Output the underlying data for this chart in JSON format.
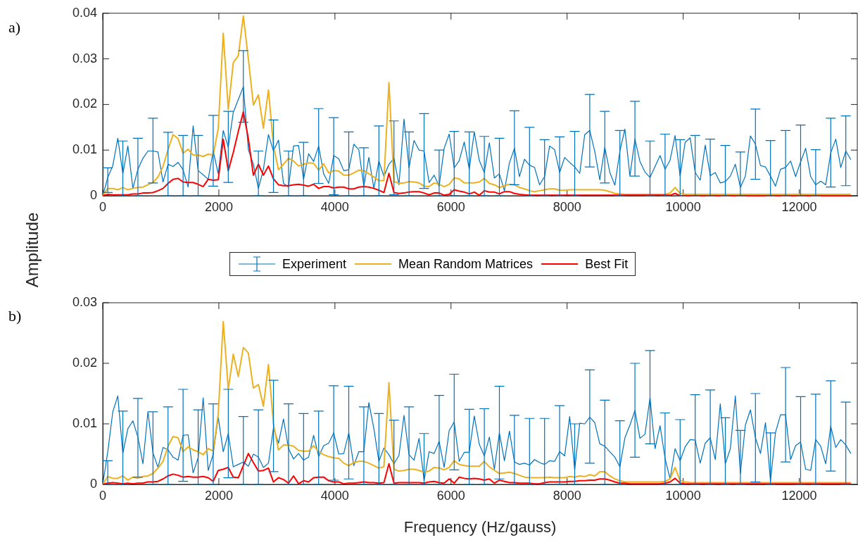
{
  "chart_data": [
    {
      "type": "line",
      "title": "a)",
      "ylabel": "Amplitude",
      "legend": "bottom",
      "x": [
        0,
        86.5,
        173,
        259.5,
        346,
        432.5,
        519,
        605.5,
        692,
        778.5,
        865,
        951.5,
        1038,
        1124.5,
        1211,
        1297.5,
        1384,
        1470.5,
        1557,
        1643.5,
        1730,
        1816.5,
        1903,
        1989.5,
        2076,
        2162.5,
        2249,
        2335.5,
        2422,
        2508.5,
        2595,
        2681.5,
        2768,
        2854.5,
        2941,
        3027.5,
        3114,
        3200.5,
        3287,
        3373.5,
        3460,
        3546.5,
        3633,
        3719.5,
        3806,
        3892.5,
        3979,
        4065.5,
        4152,
        4238.5,
        4325,
        4411.5,
        4498,
        4584.5,
        4671,
        4757.5,
        4844,
        4930.5,
        5017,
        5103.5,
        5190,
        5276.5,
        5363,
        5449.5,
        5536,
        5622.5,
        5709,
        5795.5,
        5882,
        5968.5,
        6055,
        6141.5,
        6228,
        6314.5,
        6401,
        6487.5,
        6574,
        6660.5,
        6747,
        6833.5,
        6920,
        7006.5,
        7093,
        7179.5,
        7266,
        7352.5,
        7439,
        7525.5,
        7612,
        7698.5,
        7785,
        7871.5,
        7958,
        8044.5,
        8131,
        8217.5,
        8304,
        8390.5,
        8477,
        8563.5,
        8650,
        8736.5,
        8823,
        8909.5,
        8996,
        9082.5,
        9169,
        9255.5,
        9342,
        9428.5,
        9515,
        9601.5,
        9688,
        9774.5,
        9861,
        9947.5,
        10034,
        10120.5,
        10207,
        10293.5,
        10380,
        10466.5,
        10553,
        10639.5,
        10726,
        10812.5,
        10899,
        10985.5,
        11072,
        11158.5,
        11245,
        11331.5,
        11418,
        11504.5,
        11591,
        11677.5,
        11764,
        11850.5,
        11937,
        12023.5,
        12110,
        12196.5,
        12283,
        12369.5,
        12456,
        12542.5,
        12629,
        12715.5,
        12802,
        12888.5
      ],
      "xlim": [
        0,
        13000
      ],
      "xticks": [
        0,
        2000,
        4000,
        6000,
        8000,
        10000,
        12000
      ],
      "ylim": [
        0,
        0.04
      ],
      "yticks": [
        0,
        0.01,
        0.02,
        0.03,
        0.04
      ],
      "series": [
        {
          "name": "Experiment",
          "color": "#0072bd",
          "values": [
            0,
            0.004,
            0.0066,
            0.0126,
            0.0048,
            0.0109,
            0.0016,
            0.0058,
            0.0082,
            0.0098,
            0.0098,
            0.0096,
            0.003,
            0.0069,
            0.0064,
            0.0073,
            0.0057,
            0.0019,
            0.0153,
            0.0055,
            0.0046,
            0.0036,
            0.0098,
            0.0048,
            0.0143,
            0.0106,
            0.0183,
            0.0211,
            0.0239,
            0.0101,
            0.0069,
            0.0016,
            0.0058,
            0.0134,
            0.0098,
            0.0122,
            0.0027,
            0.0019,
            0.0109,
            0.011,
            0.0036,
            0.0092,
            0.0075,
            0.0109,
            0.0048,
            0.0027,
            0.0088,
            0.0081,
            0.0055,
            0.0057,
            0.0113,
            0.0101,
            0.0021,
            0.0084,
            0.0016,
            0.0076,
            0.0042,
            0.0069,
            0.0082,
            0.0024,
            0.0168,
            0.0061,
            0.0121,
            0.01,
            0.0098,
            0.0029,
            0.0045,
            0.0021,
            0.0104,
            0.0135,
            0.0061,
            0.0077,
            0.0118,
            0.0058,
            0.014,
            0.0077,
            0.0051,
            0.0116,
            0.0039,
            0.0048,
            0.0011,
            0.0072,
            0.0104,
            0.0042,
            0.008,
            0.0067,
            0.0062,
            0.0024,
            0.0042,
            0.0109,
            0.0101,
            0.0051,
            0.0084,
            0.0073,
            0.0063,
            0.0049,
            0.0134,
            0.0143,
            0.0097,
            0.0035,
            0.0106,
            0.0051,
            0.0023,
            0.0098,
            0.0146,
            0.0043,
            0.0124,
            0.0075,
            0.0052,
            0.004,
            0.0064,
            0.0088,
            0.0058,
            0.0078,
            0.0132,
            0.0043,
            0.0117,
            0.0127,
            0.0051,
            0.0034,
            0.0111,
            0.0044,
            0.0051,
            0.0028,
            0.0031,
            0.0043,
            0.0069,
            0.0018,
            0.0043,
            0.0131,
            0.0113,
            0.0066,
            0.0063,
            0.0043,
            0.0021,
            0.0058,
            0.0062,
            0.0076,
            0.0042,
            0.0074,
            0.0104,
            0.0042,
            0.0024,
            0.0032,
            0.0024,
            0.0094,
            0.0124,
            0.0062,
            0.0098,
            0.0079
          ],
          "errors": [
            null,
            [
              0.0007,
              0.0061
            ],
            null,
            null,
            [
              0,
              0.012
            ],
            null,
            null,
            [
              0,
              0.0126
            ],
            null,
            null,
            [
              0.0028,
              0.017
            ],
            null,
            null,
            [
              0,
              0.0139
            ],
            null,
            null,
            [
              0,
              0.0132
            ],
            null,
            null,
            [
              0,
              0.0132
            ],
            null,
            null,
            [
              0.0021,
              0.0176
            ],
            null,
            null,
            [
              0.0029,
              0.0185
            ],
            null,
            null,
            [
              0.0161,
              0.0318
            ],
            null,
            null,
            [
              0,
              0.0098
            ],
            null,
            null,
            [
              0.0007,
              0.0166
            ],
            null,
            null,
            [
              0,
              0.0098
            ],
            null,
            null,
            [
              0,
              0.0117
            ],
            null,
            null,
            [
              0.0027,
              0.0191
            ],
            null,
            null,
            [
              0.0002,
              0.0171
            ],
            null,
            null,
            [
              0,
              0.014
            ],
            null,
            null,
            [
              0,
              0.0105
            ],
            null,
            null,
            [
              0,
              0.0153
            ],
            null,
            null,
            [
              0.0002,
              0.0164
            ],
            null,
            null,
            [
              0,
              0.014
            ],
            null,
            null,
            [
              0.0016,
              0.018
            ],
            null,
            null,
            [
              0,
              0.01
            ],
            null,
            null,
            [
              0,
              0.0141
            ],
            null,
            null,
            [
              0,
              0.014
            ],
            null,
            null,
            [
              0,
              0.013
            ],
            null,
            null,
            [
              0,
              0.0126
            ],
            null,
            null,
            [
              0.0024,
              0.0186
            ],
            null,
            null,
            [
              0,
              0.015
            ],
            null,
            null,
            [
              0,
              0.0123
            ],
            null,
            null,
            [
              0,
              0.0129
            ],
            null,
            null,
            [
              0,
              0.0141
            ],
            null,
            null,
            [
              0.0063,
              0.0222
            ],
            null,
            null,
            [
              0.0028,
              0.0185
            ],
            null,
            null,
            [
              0,
              0.0143
            ],
            null,
            null,
            [
              0.0043,
              0.0207
            ],
            null,
            null,
            [
              0,
              0.012
            ],
            null,
            null,
            [
              0,
              0.0135
            ],
            null,
            null,
            [
              0,
              0.0123
            ],
            null,
            null,
            [
              0,
              0.0132
            ],
            null,
            null,
            [
              0,
              0.0124
            ],
            null,
            null,
            [
              0,
              0.011
            ],
            null,
            null,
            [
              0,
              0.0096
            ],
            null,
            null,
            [
              0.0036,
              0.019
            ],
            null,
            null,
            [
              0,
              0.0121
            ],
            null,
            null,
            [
              0,
              0.0143
            ],
            null,
            null,
            [
              0,
              0.0155
            ],
            null,
            null,
            [
              0,
              0.0101
            ],
            null,
            null,
            [
              0.0019,
              0.017
            ],
            null,
            null,
            [
              0.0022,
              0.0175
            ],
            null
          ]
        },
        {
          "name": "Mean Random Matrices",
          "color": "#edb120",
          "values": [
            0,
            0.0016,
            0.0016,
            0.0013,
            0.0018,
            0.0013,
            0.0016,
            0.0018,
            0.0019,
            0.0024,
            0.0029,
            0.0041,
            0.0064,
            0.0101,
            0.0134,
            0.0125,
            0.0093,
            0.0102,
            0.0089,
            0.0089,
            0.0086,
            0.0091,
            0.0089,
            0.0147,
            0.0356,
            0.0189,
            0.0292,
            0.0307,
            0.0394,
            0.03,
            0.0199,
            0.0221,
            0.0148,
            0.0232,
            0.0109,
            0.0057,
            0.0069,
            0.0082,
            0.0076,
            0.0065,
            0.0069,
            0.0072,
            0.0071,
            0.0056,
            0.007,
            0.005,
            0.0055,
            0.0054,
            0.0045,
            0.0045,
            0.005,
            0.0056,
            0.0055,
            0.0048,
            0.0041,
            0.0033,
            0.0033,
            0.0248,
            0.0031,
            0.0027,
            0.0028,
            0.0031,
            0.003,
            0.0028,
            0.0021,
            0.002,
            0.0028,
            0.0025,
            0.002,
            0.0025,
            0.0039,
            0.0037,
            0.0028,
            0.0028,
            0.0028,
            0.003,
            0.0038,
            0.0027,
            0.0024,
            0.0018,
            0.0022,
            0.0025,
            0.0024,
            0.0018,
            0.0015,
            0.0011,
            0.0009,
            0.0011,
            0.0013,
            0.0015,
            0.0015,
            0.0012,
            0.0012,
            0.0013,
            0.0013,
            0.0013,
            0.0013,
            0.0013,
            0.0013,
            0.0013,
            0.0012,
            0.0009,
            0.0005,
            0.0004,
            0.0003,
            0.0003,
            0.0003,
            0.0003,
            0.0003,
            0.0003,
            0.0003,
            0.0003,
            0.0003,
            0.0006,
            0.0018,
            0.0005,
            0.0003,
            0.0003,
            0.0003,
            0.0003,
            0.0003,
            0.0003,
            0.0003,
            0.0003,
            0.0003,
            0.0003,
            0.0003,
            0.0003,
            0.0003,
            0.0003,
            0.0003,
            0.0003,
            0.0003,
            0.0003,
            0.0003,
            0.0003,
            0.0003,
            0.0003,
            0.0003,
            0.0003,
            0.0003,
            0.0003,
            0.0003,
            0.0003,
            0.0003,
            0.0003,
            0.0003,
            0.0003,
            0.0003,
            0.0003
          ]
        },
        {
          "name": "Best Fit",
          "color": "#ff0000",
          "values": [
            0,
            0.0003,
            0.0002,
            0.0002,
            0.0002,
            0.0002,
            0.0004,
            0.0004,
            0.0006,
            0.0006,
            0.0007,
            0.0011,
            0.0016,
            0.0027,
            0.0036,
            0.0038,
            0.003,
            0.0029,
            0.0029,
            0.0025,
            0.002,
            0.0036,
            0.0034,
            0.0035,
            0.0124,
            0.0055,
            0.0095,
            0.0141,
            0.0184,
            0.0125,
            0.0045,
            0.0069,
            0.0045,
            0.0065,
            0.0037,
            0.0024,
            0.0022,
            0.0022,
            0.0024,
            0.0025,
            0.0023,
            0.0021,
            0.0025,
            0.0016,
            0.002,
            0.002,
            0.0017,
            0.0019,
            0.0019,
            0.0015,
            0.0015,
            0.0019,
            0.002,
            0.0019,
            0.0016,
            0.0012,
            0.0007,
            0.0049,
            0.0007,
            0.0005,
            0.0006,
            0.0008,
            0.0009,
            0.0009,
            0.0006,
            0.0002,
            0.0006,
            0.0006,
            0.0001,
            0.0003,
            0.0013,
            0.001,
            0.0008,
            0.0004,
            0.0008,
            0.0001,
            0.0011,
            0.0008,
            0.0008,
            0.0004,
            0.0009,
            0.0009,
            0.0005,
            0.0003,
            0.0002,
            0.0001,
            0.0001,
            0.0001,
            0.0001,
            0.0001,
            0.0001,
            0.0001,
            0.0001,
            0.0001,
            0.0001,
            0.0001,
            0.0001,
            0.0001,
            0.0001,
            0.0001,
            0.0001,
            0.0001,
            0.0001,
            0.0001,
            0.0001,
            0.0001,
            0.0001,
            0.0001,
            0.0001,
            0.0001,
            0.0001,
            0.0001,
            0.0001,
            0.0001,
            0.0005,
            0,
            0,
            0,
            0,
            0,
            0,
            0,
            0,
            0,
            0,
            0,
            0,
            0,
            0,
            0,
            0,
            0,
            0,
            0,
            0,
            0,
            0,
            0,
            0,
            0,
            0,
            0,
            0,
            0,
            0,
            0,
            0,
            0,
            0,
            0
          ]
        }
      ]
    },
    {
      "type": "line",
      "title": "b)",
      "xlabel": "Frequency (Hz/gauss)",
      "x": [
        0,
        86.5,
        173,
        259.5,
        346,
        432.5,
        519,
        605.5,
        692,
        778.5,
        865,
        951.5,
        1038,
        1124.5,
        1211,
        1297.5,
        1384,
        1470.5,
        1557,
        1643.5,
        1730,
        1816.5,
        1903,
        1989.5,
        2076,
        2162.5,
        2249,
        2335.5,
        2422,
        2508.5,
        2595,
        2681.5,
        2768,
        2854.5,
        2941,
        3027.5,
        3114,
        3200.5,
        3287,
        3373.5,
        3460,
        3546.5,
        3633,
        3719.5,
        3806,
        3892.5,
        3979,
        4065.5,
        4152,
        4238.5,
        4325,
        4411.5,
        4498,
        4584.5,
        4671,
        4757.5,
        4844,
        4930.5,
        5017,
        5103.5,
        5190,
        5276.5,
        5363,
        5449.5,
        5536,
        5622.5,
        5709,
        5795.5,
        5882,
        5968.5,
        6055,
        6141.5,
        6228,
        6314.5,
        6401,
        6487.5,
        6574,
        6660.5,
        6747,
        6833.5,
        6920,
        7006.5,
        7093,
        7179.5,
        7266,
        7352.5,
        7439,
        7525.5,
        7612,
        7698.5,
        7785,
        7871.5,
        7958,
        8044.5,
        8131,
        8217.5,
        8304,
        8390.5,
        8477,
        8563.5,
        8650,
        8736.5,
        8823,
        8909.5,
        8996,
        9082.5,
        9169,
        9255.5,
        9342,
        9428.5,
        9515,
        9601.5,
        9688,
        9774.5,
        9861,
        9947.5,
        10034,
        10120.5,
        10207,
        10293.5,
        10380,
        10466.5,
        10553,
        10639.5,
        10726,
        10812.5,
        10899,
        10985.5,
        11072,
        11158.5,
        11245,
        11331.5,
        11418,
        11504.5,
        11591,
        11677.5,
        11764,
        11850.5,
        11937,
        12023.5,
        12110,
        12196.5,
        12283,
        12369.5,
        12456,
        12542.5,
        12629,
        12715.5,
        12802,
        12888.5
      ],
      "xlim": [
        0,
        13000
      ],
      "xticks": [
        0,
        2000,
        4000,
        6000,
        8000,
        10000,
        12000
      ],
      "ylim": [
        0,
        0.03
      ],
      "yticks": [
        0,
        0.01,
        0.02,
        0.03
      ],
      "series": [
        {
          "color": "#0072bd",
          "values": [
            0,
            0.0054,
            0.012,
            0.0146,
            0.0051,
            0.0092,
            0.0105,
            0.0078,
            0.0034,
            0.012,
            0.0052,
            0.0028,
            0.0061,
            0.0057,
            0.0045,
            0.004,
            0.0081,
            0.0082,
            0.0019,
            0.0044,
            0.0143,
            0.0023,
            0.005,
            0.0111,
            0.0054,
            0.0084,
            0.0029,
            0.0033,
            0.0037,
            0.003,
            0.005,
            0.0045,
            0.0028,
            0.0035,
            0.0093,
            0.0068,
            0.0108,
            0.0059,
            0.0042,
            0.0051,
            0.004,
            0.0045,
            0.0081,
            0.0046,
            0.0064,
            0.0068,
            0.0085,
            0.005,
            0.0051,
            0.0085,
            0.0031,
            0.0054,
            0.0054,
            0.0135,
            0.0092,
            0.0038,
            0.006,
            0.0049,
            0.0034,
            0.0048,
            0.0114,
            0.0049,
            0.004,
            0.0076,
            0.0006,
            0.0054,
            0.0051,
            0.0071,
            0.0028,
            0.0089,
            0.0103,
            0.0038,
            0.0053,
            0.0053,
            0.0113,
            0.0066,
            0.0047,
            0.0078,
            0.0025,
            0.0085,
            0.0039,
            0.0088,
            0.0037,
            0.0033,
            0.0035,
            0.0032,
            0.0041,
            0.0036,
            0.0033,
            0.0039,
            0.0038,
            0.0054,
            0.0047,
            0.0112,
            0.0024,
            0.0101,
            0.01,
            0.0111,
            0.0102,
            0.0067,
            0.0063,
            0.0054,
            0.0045,
            0.0029,
            0.0077,
            0.0098,
            0.0122,
            0.0076,
            0.0083,
            0.0143,
            0.0059,
            0.0097,
            0.0043,
            0.0009,
            0.0059,
            0.0039,
            0.0062,
            0.0074,
            0.0073,
            0.0035,
            0.0068,
            0.0077,
            0.0041,
            0.0133,
            0.0034,
            0.0059,
            0.0146,
            0.0018,
            0.0098,
            0.0123,
            0.0077,
            0.0051,
            0.0102,
            0.0005,
            0.0086,
            0.0115,
            0.0115,
            0.0041,
            0.0064,
            0.007,
            0.0025,
            0.0023,
            0.0074,
            0.0063,
            0.0034,
            0.0096,
            0.0061,
            0.0074,
            0.0065,
            0.0051
          ],
          "errors": [
            null,
            [
              0,
              0.0039
            ],
            null,
            null,
            [
              0,
              0.0121
            ],
            null,
            null,
            [
              0.0012,
              0.0142
            ],
            null,
            null,
            [
              0,
              0.012
            ],
            null,
            null,
            [
              0,
              0.0128
            ],
            null,
            null,
            [
              0.0005,
              0.0157
            ],
            null,
            null,
            [
              0,
              0.0123
            ],
            null,
            null,
            [
              0,
              0.0133
            ],
            null,
            null,
            [
              0.0011,
              0.0157
            ],
            null,
            null,
            [
              0,
              0.0112
            ],
            null,
            null,
            [
              0,
              0.0123
            ],
            null,
            null,
            [
              0.0021,
              0.0172
            ],
            null,
            null,
            [
              0,
              0.0133
            ],
            null,
            null,
            [
              0,
              0.0117
            ],
            null,
            null,
            [
              0,
              0.0121
            ],
            null,
            null,
            [
              0.0007,
              0.0163
            ],
            null,
            null,
            [
              0.0009,
              0.0162
            ],
            null,
            null,
            [
              0,
              0.0128
            ],
            null,
            null,
            [
              0,
              0.0117
            ],
            null,
            null,
            [
              0,
              0.0106
            ],
            null,
            null,
            [
              0,
              0.0128
            ],
            null,
            null,
            [
              0,
              0.0084
            ],
            null,
            null,
            [
              0,
              0.0147
            ],
            null,
            null,
            [
              0.0024,
              0.0182
            ],
            null,
            null,
            [
              0,
              0.0124
            ],
            null,
            null,
            [
              0,
              0.0125
            ],
            null,
            null,
            [
              0.0009,
              0.0162
            ],
            null,
            null,
            [
              0,
              0.0114
            ],
            null,
            null,
            [
              0,
              0.0109
            ],
            null,
            null,
            [
              0,
              0.0109
            ],
            null,
            null,
            [
              0,
              0.013
            ],
            null,
            null,
            [
              0,
              0.01
            ],
            null,
            null,
            [
              0.0035,
              0.0189
            ],
            null,
            null,
            [
              0,
              0.0139
            ],
            null,
            null,
            [
              0,
              0.0105
            ],
            null,
            null,
            [
              0.0045,
              0.02
            ],
            null,
            null,
            [
              0.0067,
              0.0221
            ],
            null,
            null,
            [
              0,
              0.0118
            ],
            null,
            null,
            [
              0,
              0.0107
            ],
            null,
            null,
            [
              0,
              0.0148
            ],
            null,
            null,
            [
              0,
              0.0156
            ],
            null,
            null,
            [
              0,
              0.011
            ],
            null,
            null,
            [
              0,
              0.0089
            ],
            null,
            null,
            [
              0.0004,
              0.015
            ],
            null,
            null,
            [
              0,
              0.0085
            ],
            null,
            null,
            [
              0.0037,
              0.0193
            ],
            null,
            null,
            [
              0,
              0.0145
            ],
            null,
            null,
            [
              0,
              0.0149
            ],
            null,
            null,
            [
              0.0022,
              0.0171
            ],
            null,
            null,
            [
              0,
              0.0136
            ],
            null
          ]
        },
        {
          "color": "#edb120",
          "values": [
            0,
            0.0013,
            0.001,
            0.001,
            0.0014,
            0.0007,
            0.0012,
            0.001,
            0.0013,
            0.0014,
            0.0018,
            0.0027,
            0.0038,
            0.0063,
            0.0079,
            0.0077,
            0.0054,
            0.0062,
            0.0057,
            0.0054,
            0.0049,
            0.0059,
            0.0055,
            0.0116,
            0.0269,
            0.0157,
            0.0215,
            0.0178,
            0.0226,
            0.0217,
            0.0159,
            0.0165,
            0.0129,
            0.0198,
            0.01,
            0.0057,
            0.0065,
            0.0065,
            0.0063,
            0.0056,
            0.0055,
            0.0055,
            0.0064,
            0.0054,
            0.0049,
            0.0046,
            0.0044,
            0.0043,
            0.0035,
            0.0031,
            0.0036,
            0.0038,
            0.0038,
            0.0035,
            0.0031,
            0.0027,
            0.0029,
            0.0168,
            0.0025,
            0.0022,
            0.0023,
            0.0025,
            0.0025,
            0.0023,
            0.002,
            0.0022,
            0.0028,
            0.0027,
            0.0024,
            0.0028,
            0.0039,
            0.0033,
            0.0031,
            0.003,
            0.003,
            0.003,
            0.0038,
            0.0029,
            0.0023,
            0.0018,
            0.0019,
            0.002,
            0.0018,
            0.0015,
            0.0012,
            0.0011,
            0.0011,
            0.0011,
            0.0011,
            0.0012,
            0.0011,
            0.0011,
            0.0011,
            0.0013,
            0.0012,
            0.0014,
            0.0013,
            0.0016,
            0.0014,
            0.0021,
            0.0021,
            0.0014,
            0.0009,
            0.0006,
            0.0004,
            0.0004,
            0.0004,
            0.0004,
            0.0004,
            0.0004,
            0.0004,
            0.0004,
            0.0005,
            0.0009,
            0.0028,
            0.0006,
            0.0004,
            0.0003,
            0.0003,
            0.0003,
            0.0003,
            0.0003,
            0.0003,
            0.0003,
            0.0003,
            0.0003,
            0.0003,
            0.0003,
            0.0003,
            0.0003,
            0.0003,
            0.0003,
            0.0003,
            0.0003,
            0.0003,
            0.0003,
            0.0003,
            0.0003,
            0.0003,
            0.0003,
            0.0003,
            0.0003,
            0.0003,
            0.0003,
            0.0003,
            0.0003,
            0.0003,
            0.0003,
            0.0003,
            0.0003
          ]
        },
        {
          "color": "#ff0000",
          "values": [
            0,
            0.0002,
            0.0003,
            0.0002,
            0.0001,
            0.0002,
            0.0001,
            0.0002,
            0.0002,
            0.0004,
            0.0004,
            0.0005,
            0.0009,
            0.0014,
            0.0017,
            0.0015,
            0.0012,
            0.0013,
            0.0012,
            0.0012,
            0.0013,
            0.0011,
            0.0005,
            0.0023,
            0.0025,
            0.0028,
            0.0012,
            0.0011,
            0.0031,
            0.0051,
            0.0036,
            0.0022,
            0.0023,
            0.0027,
            0.0004,
            0.0011,
            0.0008,
            0.0002,
            0.0014,
            0.0001,
            0.0006,
            0.0004,
            0.0011,
            0.0012,
            0.0012,
            0.0006,
            0.0004,
            0.0004,
            0.0001,
            0.0002,
            0.0002,
            0.0003,
            0.0004,
            0.0003,
            0.0003,
            0.0002,
            0.0003,
            0.0034,
            0.0002,
            0.0003,
            0.0003,
            0.0003,
            0.0003,
            0.0003,
            0.0002,
            0.0004,
            0.0005,
            0.0003,
            0.0002,
            0.0009,
            0.0002,
            0.0012,
            0.001,
            0.0009,
            0.001,
            0.0009,
            0.0007,
            0.0009,
            0.0002,
            0.0007,
            0.0005,
            0.0003,
            0.0003,
            0.0002,
            0.0002,
            0.0002,
            0.0001,
            0.0001,
            0.0003,
            0.0004,
            0.0004,
            0.0004,
            0.0004,
            0.0005,
            0.0005,
            0.0006,
            0.0006,
            0.0007,
            0.0007,
            0.0009,
            0.0009,
            0.0007,
            0.0004,
            0.0002,
            0.0002,
            0.0001,
            0.0001,
            0.0001,
            0.0001,
            0.0001,
            0.0001,
            0.0001,
            0.0002,
            0.0004,
            0.001,
            0.0002,
            0.0001,
            0.0001,
            0.0001,
            0.0001,
            0.0001,
            0.0001,
            0.0001,
            0.0001,
            0.0001,
            0.0001,
            0.0001,
            0.0001,
            0.0001,
            0.0001,
            0.0001,
            0.0001,
            0.0001,
            0.0001,
            0.0001,
            0.0001,
            0.0001,
            0.0001,
            0.0001,
            0.0001,
            0.0001,
            0.0001,
            0.0001,
            0.0001,
            0.0001,
            0.0001,
            0.0001,
            0.0001,
            0.0001,
            0.0001
          ]
        }
      ]
    }
  ]
}
